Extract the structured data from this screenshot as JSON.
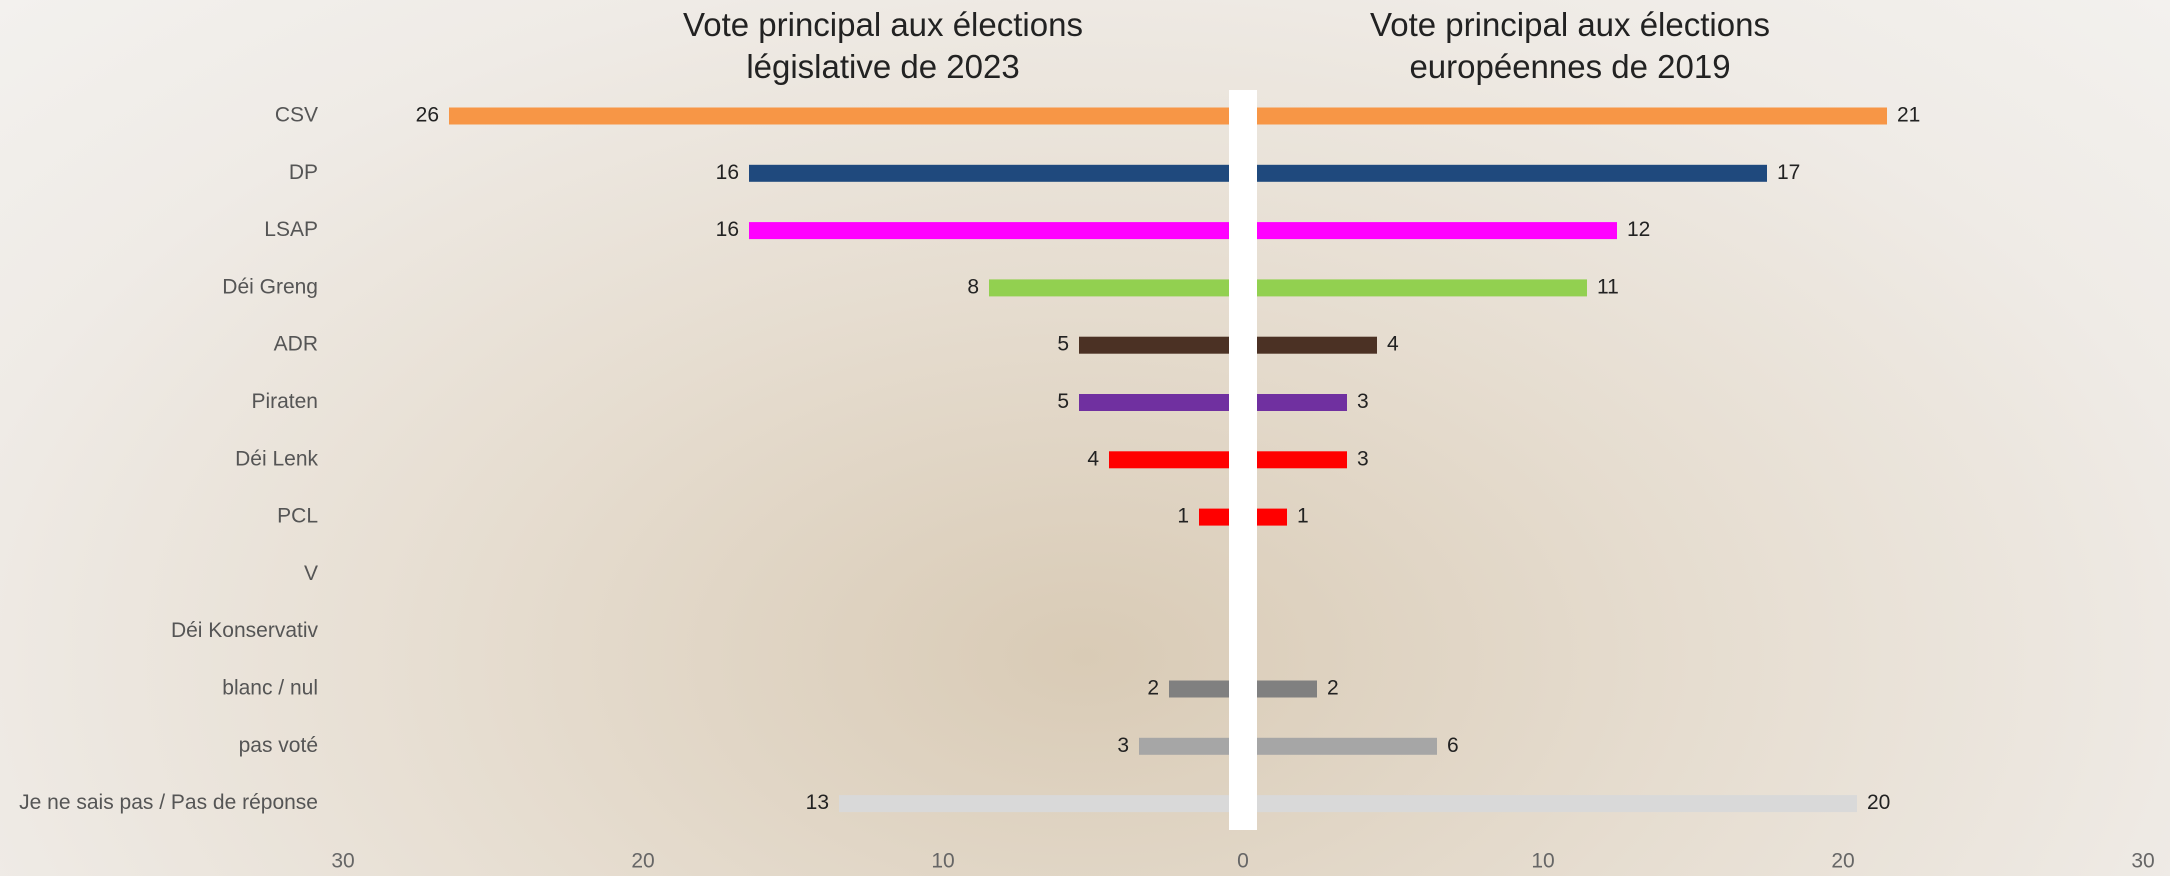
{
  "chart_data": {
    "type": "butterfly-bar",
    "categories": [
      "CSV",
      "DP",
      "LSAP",
      "Déi Greng",
      "ADR",
      "Piraten",
      "Déi Lenk",
      "PCL",
      "V",
      "Déi Konservativ",
      "blanc / nul",
      "pas voté",
      "Je ne sais pas / Pas de réponse"
    ],
    "colors": [
      "#f79646",
      "#1f497d",
      "#ff00ff",
      "#92d050",
      "#4b3124",
      "#7030a0",
      "#ff0000",
      "#ff0000",
      "#888888",
      "#888888",
      "#808080",
      "#a6a6a6",
      "#d9d9d9"
    ],
    "series": [
      {
        "name": "Vote principal aux élections législative de 2023",
        "values": [
          26,
          16,
          16,
          8,
          5,
          5,
          4,
          1,
          null,
          null,
          2,
          3,
          13
        ]
      },
      {
        "name": "Vote principal aux élections européennes de 2019",
        "values": [
          21,
          17,
          12,
          11,
          4,
          3,
          3,
          1,
          null,
          null,
          2,
          6,
          20
        ]
      }
    ],
    "xlim": [
      0,
      30
    ],
    "xticks": [
      0,
      10,
      20,
      30
    ]
  }
}
